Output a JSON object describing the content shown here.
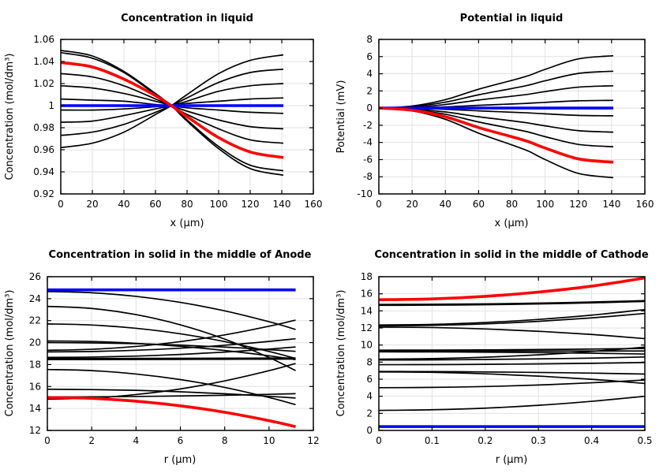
{
  "page": {
    "background": "#ffffff"
  },
  "colors": {
    "black": "#000000",
    "red": "#ff0000",
    "blue": "#0000ff",
    "grid": "#e2e2e2",
    "axis": "#000000"
  },
  "chart_data": [
    {
      "id": "concentration-in-liquid",
      "type": "line",
      "title": "Concentration in liquid",
      "xlabel": "x (µm)",
      "ylabel": "Concentration (mol/dm³)",
      "xlim": [
        0,
        160
      ],
      "ylim": [
        0.92,
        1.06
      ],
      "grid": true,
      "legend": "none",
      "xticks": {
        "values": [
          0,
          20,
          40,
          60,
          80,
          100,
          120,
          140,
          160
        ],
        "labels": [
          "0",
          "20",
          "40",
          "60",
          "80",
          "100",
          "120",
          "140",
          "160"
        ]
      },
      "yticks": {
        "values": [
          0.92,
          0.94,
          0.96,
          0.98,
          1,
          1.02,
          1.04,
          1.06
        ],
        "labels": [
          "0.92",
          "0.94",
          "0.96",
          "0.98",
          "1",
          "1.02",
          "1.04",
          "1.06"
        ]
      },
      "x": [
        0,
        20,
        40,
        60,
        70,
        80,
        100,
        120,
        141
      ],
      "series": [
        {
          "name": "black-1",
          "color": "black",
          "width": 1.7,
          "y": [
            1.05,
            1.045,
            1.031,
            1.011,
            1.0,
            0.987,
            0.963,
            0.946,
            0.941
          ]
        },
        {
          "name": "black-1b",
          "color": "black",
          "width": 1.7,
          "y": [
            1.048,
            1.043,
            1.03,
            1.01,
            1.0,
            0.986,
            0.961,
            0.943,
            0.937
          ]
        },
        {
          "name": "black-2",
          "color": "black",
          "width": 1.7,
          "y": [
            1.029,
            1.026,
            1.018,
            1.006,
            1.0,
            0.992,
            0.979,
            0.969,
            0.966
          ]
        },
        {
          "name": "black-3",
          "color": "black",
          "width": 1.7,
          "y": [
            1.018,
            1.016,
            1.011,
            1.004,
            1.0,
            0.995,
            0.987,
            0.981,
            0.979
          ]
        },
        {
          "name": "black-4",
          "color": "black",
          "width": 1.7,
          "y": [
            1.006,
            1.005,
            1.004,
            1.001,
            1.0,
            0.998,
            0.996,
            0.994,
            0.993
          ]
        },
        {
          "name": "black-5",
          "color": "black",
          "width": 1.7,
          "y": [
            0.962,
            0.966,
            0.976,
            0.992,
            1.0,
            1.01,
            1.029,
            1.041,
            1.046
          ]
        },
        {
          "name": "black-6",
          "color": "black",
          "width": 1.7,
          "y": [
            0.973,
            0.976,
            0.983,
            0.994,
            1.0,
            1.007,
            1.021,
            1.03,
            1.033
          ]
        },
        {
          "name": "black-7",
          "color": "black",
          "width": 1.7,
          "y": [
            0.985,
            0.986,
            0.991,
            0.997,
            1.0,
            1.004,
            1.013,
            1.018,
            1.02
          ]
        },
        {
          "name": "black-8",
          "color": "black",
          "width": 1.7,
          "y": [
            0.996,
            0.996,
            0.997,
            0.999,
            1.0,
            1.002,
            1.004,
            1.006,
            1.007
          ]
        },
        {
          "name": "blue-reference",
          "color": "blue",
          "width": 3.6,
          "y": [
            1,
            1,
            1,
            1,
            1,
            1,
            1,
            1,
            1
          ]
        },
        {
          "name": "red-highlight",
          "color": "red",
          "width": 3.6,
          "y": [
            1.039,
            1.035,
            1.024,
            1.009,
            1.0,
            0.99,
            0.971,
            0.958,
            0.953
          ]
        }
      ]
    },
    {
      "id": "potential-in-liquid",
      "type": "line",
      "title": "Potential in liquid",
      "xlabel": "x (µm)",
      "ylabel": "Potential (mV)",
      "xlim": [
        0,
        160
      ],
      "ylim": [
        -10,
        8
      ],
      "grid": true,
      "legend": "none",
      "xticks": {
        "values": [
          0,
          20,
          40,
          60,
          80,
          100,
          120,
          140,
          160
        ],
        "labels": [
          "0",
          "20",
          "40",
          "60",
          "80",
          "100",
          "120",
          "140",
          "160"
        ]
      },
      "yticks": {
        "values": [
          -10,
          -8,
          -6,
          -4,
          -2,
          0,
          2,
          4,
          6,
          8
        ],
        "labels": [
          "-10",
          "-8",
          "-6",
          "-4",
          "-2",
          "0",
          "2",
          "4",
          "6",
          "8"
        ]
      },
      "x": [
        0,
        20,
        40,
        60,
        80,
        90,
        100,
        120,
        141
      ],
      "series": [
        {
          "name": "black-1",
          "color": "black",
          "width": 1.7,
          "y": [
            0,
            0.24,
            0.98,
            2.2,
            3.23,
            3.78,
            4.51,
            5.73,
            6.1
          ]
        },
        {
          "name": "black-2",
          "color": "black",
          "width": 1.7,
          "y": [
            0,
            0.17,
            0.69,
            1.55,
            2.28,
            2.67,
            3.18,
            4.04,
            4.3
          ]
        },
        {
          "name": "black-3",
          "color": "black",
          "width": 1.7,
          "y": [
            0,
            0.1,
            0.42,
            0.94,
            1.38,
            1.61,
            1.92,
            2.44,
            2.6
          ]
        },
        {
          "name": "black-4",
          "color": "black",
          "width": 1.7,
          "y": [
            0,
            0.04,
            0.14,
            0.32,
            0.48,
            0.56,
            0.67,
            0.85,
            0.9
          ]
        },
        {
          "name": "black-5",
          "color": "black",
          "width": 1.7,
          "y": [
            0,
            -0.04,
            -0.14,
            -0.32,
            -0.48,
            -0.56,
            -0.67,
            -0.85,
            -0.9
          ]
        },
        {
          "name": "black-6",
          "color": "black",
          "width": 1.7,
          "y": [
            0,
            -0.11,
            -0.45,
            -1.01,
            -1.48,
            -1.74,
            -2.07,
            -2.63,
            -2.8
          ]
        },
        {
          "name": "black-7",
          "color": "black",
          "width": 1.7,
          "y": [
            0,
            -0.18,
            -0.72,
            -1.62,
            -2.39,
            -2.79,
            -3.33,
            -4.23,
            -4.5
          ]
        },
        {
          "name": "black-8",
          "color": "black",
          "width": 1.7,
          "y": [
            0,
            -0.32,
            -1.3,
            -2.92,
            -4.29,
            -5.02,
            -5.99,
            -7.61,
            -8.1
          ]
        },
        {
          "name": "blue-reference",
          "color": "blue",
          "width": 3.6,
          "y": [
            0,
            0,
            0,
            0,
            0,
            0,
            0,
            0,
            0
          ]
        },
        {
          "name": "red-highlight",
          "color": "red",
          "width": 3.6,
          "y": [
            0,
            -0.25,
            -1.01,
            -2.27,
            -3.34,
            -3.91,
            -4.66,
            -5.92,
            -6.3
          ]
        }
      ]
    },
    {
      "id": "concentration-solid-anode",
      "type": "line",
      "title": "Concentration in solid in the middle of Anode",
      "xlabel": "r (µm)",
      "ylabel": "Concentration (mol/dm³)",
      "xlim": [
        0,
        12
      ],
      "ylim": [
        12,
        26
      ],
      "grid": true,
      "legend": "none",
      "xticks": {
        "values": [
          0,
          2,
          4,
          6,
          8,
          10,
          12
        ],
        "labels": [
          "0",
          "2",
          "4",
          "6",
          "8",
          "10",
          "12"
        ]
      },
      "yticks": {
        "values": [
          12,
          14,
          16,
          18,
          20,
          22,
          24,
          26
        ],
        "labels": [
          "12",
          "14",
          "16",
          "18",
          "20",
          "22",
          "24",
          "26"
        ]
      },
      "x": [
        0,
        2,
        4,
        6,
        8,
        10,
        11.2
      ],
      "series": [
        {
          "name": "black-1",
          "color": "black",
          "width": 1.7,
          "y": [
            24.65,
            24.54,
            24.21,
            23.66,
            22.89,
            21.9,
            21.2
          ]
        },
        {
          "name": "black-2",
          "color": "black",
          "width": 1.7,
          "y": [
            23.3,
            23.11,
            22.55,
            21.62,
            20.32,
            18.64,
            17.45
          ]
        },
        {
          "name": "black-3",
          "color": "black",
          "width": 1.7,
          "y": [
            21.7,
            21.6,
            21.3,
            20.8,
            20.09,
            19.19,
            18.55
          ]
        },
        {
          "name": "black-4",
          "color": "black",
          "width": 1.7,
          "y": [
            20.15,
            20.1,
            19.93,
            19.66,
            19.28,
            18.8,
            18.45
          ]
        },
        {
          "name": "black-5",
          "color": "black",
          "width": 1.7,
          "y": [
            20.0,
            19.97,
            19.9,
            19.77,
            19.59,
            19.36,
            19.2
          ]
        },
        {
          "name": "black-6",
          "color": "black",
          "width": 1.7,
          "y": [
            19.3,
            19.39,
            19.65,
            20.09,
            20.7,
            21.49,
            22.05
          ]
        },
        {
          "name": "black-7",
          "color": "black",
          "width": 1.7,
          "y": [
            19.15,
            19.19,
            19.3,
            19.49,
            19.76,
            20.11,
            20.35
          ]
        },
        {
          "name": "black-8",
          "color": "black",
          "width": 1.7,
          "y": [
            18.65,
            18.68,
            18.77,
            18.92,
            19.13,
            19.41,
            19.6
          ]
        },
        {
          "name": "black-9",
          "color": "black",
          "width": 1.7,
          "y": [
            18.55,
            18.55,
            18.56,
            18.57,
            18.58,
            18.59,
            18.6
          ]
        },
        {
          "name": "black-10",
          "color": "black",
          "width": 1.7,
          "y": [
            18.45,
            18.45,
            18.46,
            18.47,
            18.48,
            18.49,
            18.5
          ]
        },
        {
          "name": "black-11",
          "color": "black",
          "width": 1.7,
          "y": [
            17.55,
            17.45,
            17.14,
            16.63,
            15.92,
            15.0,
            14.35
          ]
        },
        {
          "name": "black-12",
          "color": "black",
          "width": 1.7,
          "y": [
            15.75,
            15.72,
            15.65,
            15.52,
            15.34,
            15.11,
            14.95
          ]
        },
        {
          "name": "black-13",
          "color": "black",
          "width": 1.7,
          "y": [
            15.05,
            15.06,
            15.09,
            15.14,
            15.2,
            15.29,
            15.35
          ]
        },
        {
          "name": "black-14",
          "color": "black",
          "width": 1.7,
          "y": [
            14.85,
            14.95,
            15.27,
            15.78,
            16.51,
            17.44,
            18.1
          ]
        },
        {
          "name": "blue-reference",
          "color": "blue",
          "width": 3.6,
          "y": [
            24.8,
            24.8,
            24.8,
            24.8,
            24.8,
            24.8,
            24.8
          ]
        },
        {
          "name": "red-highlight",
          "color": "red",
          "width": 3.6,
          "y": [
            15.0,
            14.92,
            14.66,
            14.24,
            13.65,
            12.89,
            12.35
          ]
        }
      ]
    },
    {
      "id": "concentration-solid-cathode",
      "type": "line",
      "title": "Concentration in solid in the middle of Cathode",
      "xlabel": "r (µm)",
      "ylabel": "Concentration (mol/dm³)",
      "xlim": [
        0,
        0.5
      ],
      "ylim": [
        0,
        18
      ],
      "grid": true,
      "legend": "none",
      "xticks": {
        "values": [
          0,
          0.1,
          0.2,
          0.3,
          0.4,
          0.5
        ],
        "labels": [
          "0",
          "0.1",
          "0.2",
          "0.3",
          "0.4",
          "0.5"
        ]
      },
      "yticks": {
        "values": [
          0,
          2,
          4,
          6,
          8,
          10,
          12,
          14,
          16,
          18
        ],
        "labels": [
          "0",
          "2",
          "4",
          "6",
          "8",
          "10",
          "12",
          "14",
          "16",
          "18"
        ]
      },
      "x": [
        0,
        0.1,
        0.2,
        0.3,
        0.4,
        0.5
      ],
      "series": [
        {
          "name": "black-1",
          "color": "black",
          "width": 1.7,
          "y": [
            14.75,
            14.77,
            14.82,
            14.91,
            15.04,
            15.2
          ]
        },
        {
          "name": "black-2",
          "color": "black",
          "width": 1.7,
          "y": [
            14.65,
            14.67,
            14.72,
            14.81,
            14.94,
            15.1
          ]
        },
        {
          "name": "black-3",
          "color": "black",
          "width": 1.7,
          "y": [
            12.35,
            12.42,
            12.64,
            13.0,
            13.5,
            14.15
          ]
        },
        {
          "name": "black-4",
          "color": "black",
          "width": 1.7,
          "y": [
            12.25,
            12.31,
            12.48,
            12.77,
            13.18,
            13.7
          ]
        },
        {
          "name": "black-5",
          "color": "black",
          "width": 1.7,
          "y": [
            12.1,
            12.05,
            11.88,
            11.61,
            11.24,
            10.75
          ]
        },
        {
          "name": "black-6",
          "color": "black",
          "width": 1.7,
          "y": [
            9.4,
            9.41,
            9.43,
            9.47,
            9.53,
            9.6
          ]
        },
        {
          "name": "black-7",
          "color": "black",
          "width": 1.7,
          "y": [
            9.3,
            9.3,
            9.3,
            9.3,
            9.3,
            9.3
          ]
        },
        {
          "name": "black-8",
          "color": "black",
          "width": 1.7,
          "y": [
            9.2,
            9.19,
            9.16,
            9.11,
            9.04,
            8.95
          ]
        },
        {
          "name": "black-9",
          "color": "black",
          "width": 1.7,
          "y": [
            8.35,
            8.41,
            8.57,
            8.85,
            9.25,
            9.75
          ]
        },
        {
          "name": "black-10",
          "color": "black",
          "width": 1.7,
          "y": [
            8.25,
            8.26,
            8.31,
            8.38,
            8.47,
            8.6
          ]
        },
        {
          "name": "black-11",
          "color": "black",
          "width": 1.7,
          "y": [
            7.7,
            7.71,
            7.74,
            7.79,
            7.86,
            7.95
          ]
        },
        {
          "name": "black-12",
          "color": "black",
          "width": 1.7,
          "y": [
            6.9,
            6.89,
            6.85,
            6.79,
            6.71,
            6.6
          ]
        },
        {
          "name": "black-13",
          "color": "black",
          "width": 1.7,
          "y": [
            6.85,
            6.8,
            6.63,
            6.36,
            5.99,
            5.5
          ]
        },
        {
          "name": "black-14",
          "color": "black",
          "width": 1.7,
          "y": [
            5.0,
            5.04,
            5.14,
            5.32,
            5.58,
            5.9
          ]
        },
        {
          "name": "black-15",
          "color": "black",
          "width": 1.7,
          "y": [
            2.35,
            2.42,
            2.61,
            2.94,
            3.41,
            4.0
          ]
        },
        {
          "name": "blue-reference",
          "color": "blue",
          "width": 3.6,
          "y": [
            0.45,
            0.45,
            0.45,
            0.45,
            0.45,
            0.45
          ]
        },
        {
          "name": "red-highlight",
          "color": "red",
          "width": 3.6,
          "y": [
            15.3,
            15.4,
            15.7,
            16.2,
            16.9,
            17.85
          ]
        }
      ]
    }
  ]
}
